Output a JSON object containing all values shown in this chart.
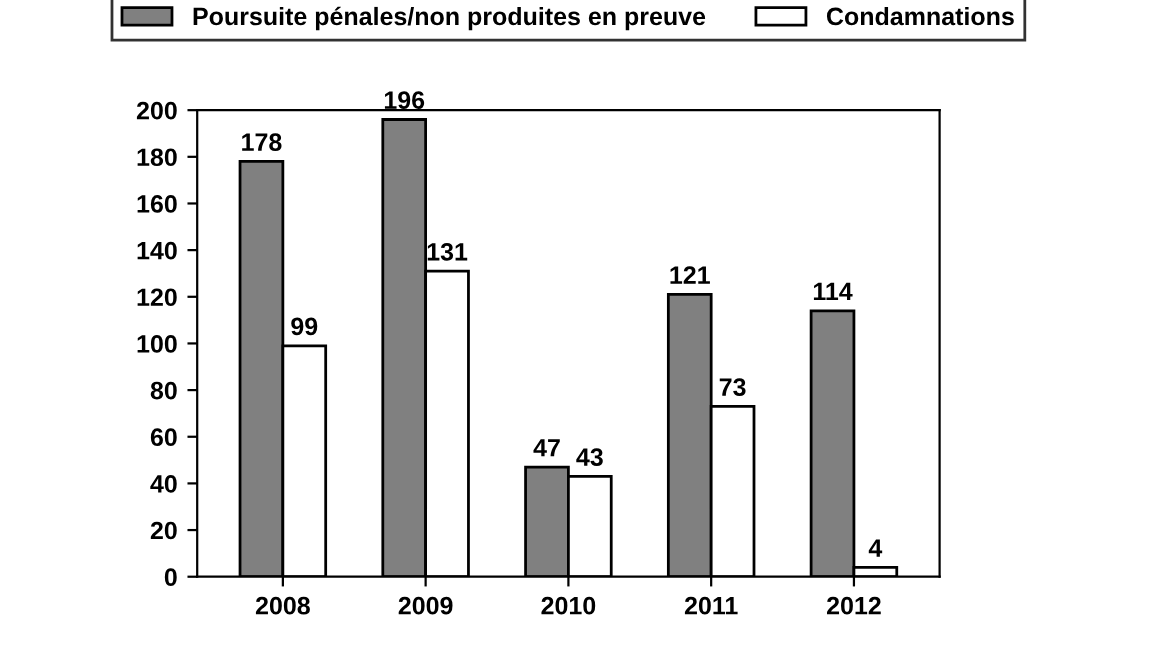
{
  "chart_data": {
    "type": "bar",
    "categories": [
      "2008",
      "2009",
      "2010",
      "2011",
      "2012"
    ],
    "series": [
      {
        "name": "Poursuite pénales/non produites en preuve",
        "color": "#808080",
        "values": [
          178,
          196,
          47,
          121,
          114
        ]
      },
      {
        "name": "Condamnations",
        "color": "#ffffff",
        "values": [
          99,
          131,
          43,
          73,
          4
        ]
      }
    ],
    "ylim": [
      0,
      200
    ],
    "yticks": [
      0,
      20,
      40,
      60,
      80,
      100,
      120,
      140,
      160,
      180,
      200
    ],
    "data_labels": true,
    "grid": false,
    "legend": "top"
  }
}
